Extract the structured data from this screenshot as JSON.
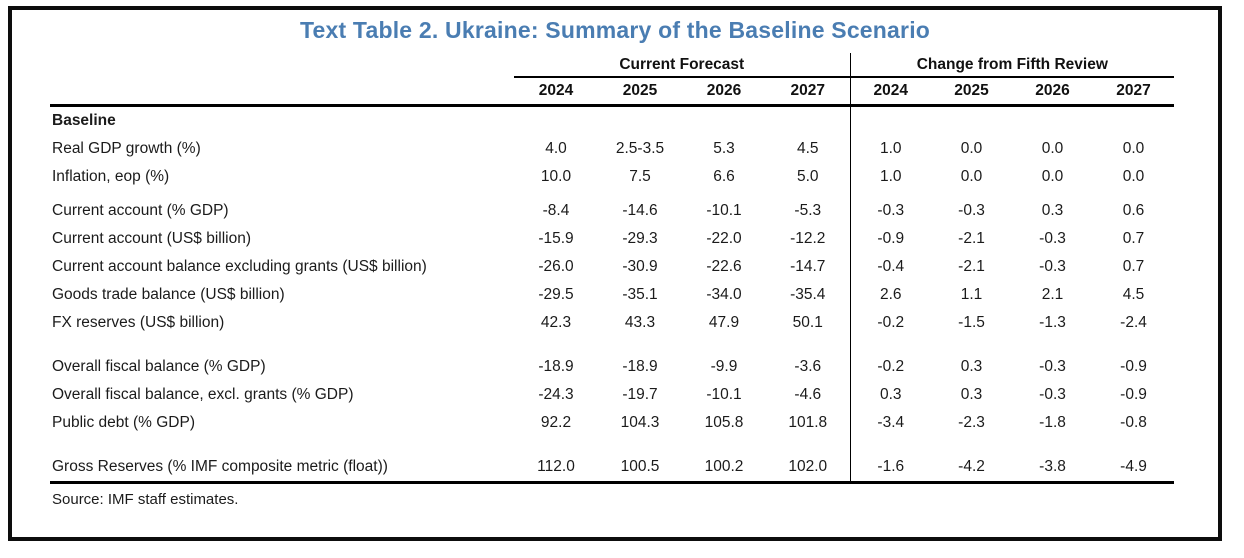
{
  "title": "Text Table 2. Ukraine: Summary of the Baseline Scenario",
  "accent_color": "#4a7db2",
  "table": {
    "group_headers": [
      "Current Forecast",
      "Change from Fifth Review"
    ],
    "years": [
      "2024",
      "2025",
      "2026",
      "2027",
      "2024",
      "2025",
      "2026",
      "2027"
    ],
    "rows": [
      {
        "label": "Baseline",
        "bold": true,
        "values": null
      },
      {
        "label": "Real GDP growth (%)",
        "values": [
          "4.0",
          "2.5-3.5",
          "5.3",
          "4.5",
          "1.0",
          "0.0",
          "0.0",
          "0.0"
        ]
      },
      {
        "label": "Inflation, eop (%)",
        "values": [
          "10.0",
          "7.5",
          "6.6",
          "5.0",
          "1.0",
          "0.0",
          "0.0",
          "0.0"
        ]
      },
      {
        "spacer": 6
      },
      {
        "label": "Current account (% GDP)",
        "values": [
          "-8.4",
          "-14.6",
          "-10.1",
          "-5.3",
          "-0.3",
          "-0.3",
          "0.3",
          "0.6"
        ]
      },
      {
        "label": "Current account (US$ billion)",
        "values": [
          "-15.9",
          "-29.3",
          "-22.0",
          "-12.2",
          "-0.9",
          "-2.1",
          "-0.3",
          "0.7"
        ]
      },
      {
        "label": "Current account balance excluding grants (US$ billion)",
        "values": [
          "-26.0",
          "-30.9",
          "-22.6",
          "-14.7",
          "-0.4",
          "-2.1",
          "-0.3",
          "0.7"
        ]
      },
      {
        "label": "Goods trade balance (US$ billion)",
        "values": [
          "-29.5",
          "-35.1",
          "-34.0",
          "-35.4",
          "2.6",
          "1.1",
          "2.1",
          "4.5"
        ]
      },
      {
        "label": "FX reserves (US$ billion)",
        "values": [
          "42.3",
          "43.3",
          "47.9",
          "50.1",
          "-0.2",
          "-1.5",
          "-1.3",
          "-2.4"
        ]
      },
      {
        "spacer": 16
      },
      {
        "label": "Overall fiscal balance (% GDP)",
        "values": [
          "-18.9",
          "-18.9",
          "-9.9",
          "-3.6",
          "-0.2",
          "0.3",
          "-0.3",
          "-0.9"
        ]
      },
      {
        "label": "Overall fiscal balance, excl. grants (% GDP)",
        "values": [
          "-24.3",
          "-19.7",
          "-10.1",
          "-4.6",
          "0.3",
          "0.3",
          "-0.3",
          "-0.9"
        ]
      },
      {
        "label": "Public debt (% GDP)",
        "values": [
          "92.2",
          "104.3",
          "105.8",
          "101.8",
          "-3.4",
          "-2.3",
          "-1.8",
          "-0.8"
        ]
      },
      {
        "spacer": 16
      },
      {
        "label": "Gross Reserves (% IMF composite metric (float))",
        "values": [
          "112.0",
          "100.5",
          "100.2",
          "102.0",
          "-1.6",
          "-4.2",
          "-3.8",
          "-4.9"
        ]
      }
    ],
    "source": "Source: IMF staff estimates."
  }
}
